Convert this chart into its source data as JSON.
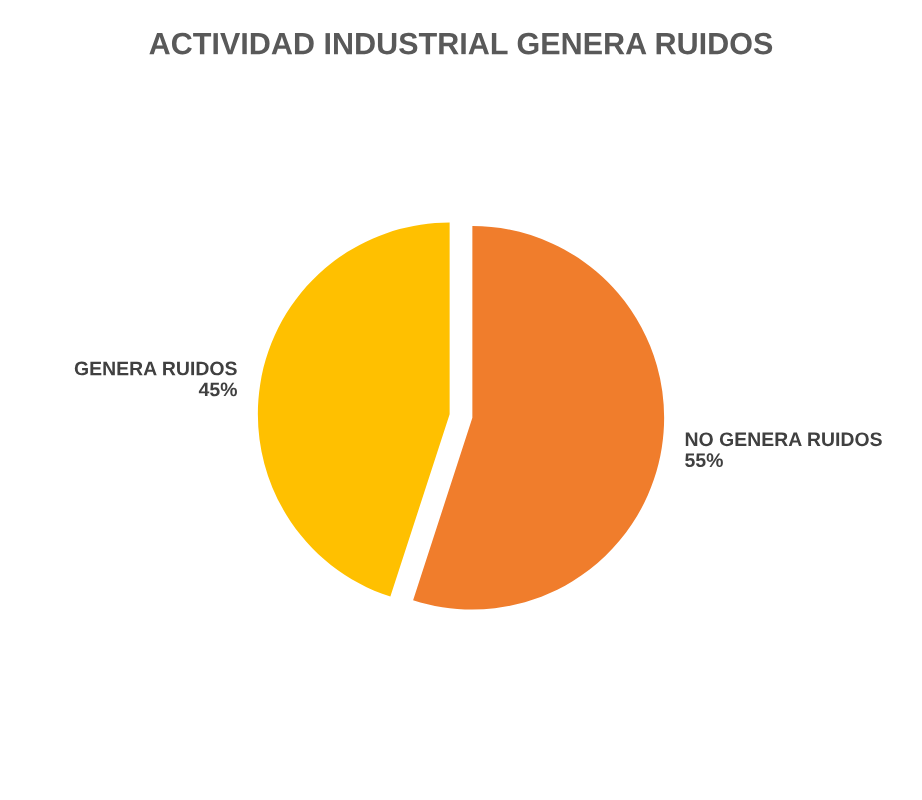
{
  "chart_data": {
    "type": "pie",
    "title": "ACTIVIDAD INDUSTRIAL GENERA RUIDOS",
    "categories": [
      "NO GENERA RUIDOS",
      "GENERA RUIDOS"
    ],
    "values": [
      55,
      45
    ],
    "value_labels": [
      "55%",
      "45%"
    ],
    "colors": [
      "#f07d2c",
      "#ffc000"
    ],
    "legend": false
  }
}
